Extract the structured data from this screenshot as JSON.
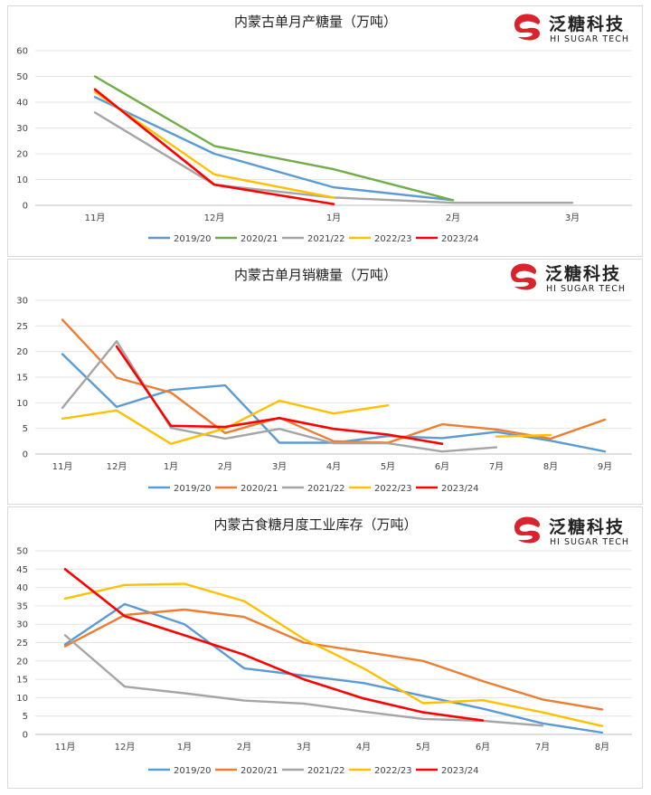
{
  "brand": {
    "name_cn": "泛糖科技",
    "name_en": "HI SUGAR TECH",
    "logo_color": "#d9232d"
  },
  "chart_data": [
    {
      "type": "line",
      "title": "内蒙古单月产糖量（万吨）",
      "categories": [
        "11月",
        "12月",
        "1月",
        "2月",
        "3月"
      ],
      "ylim": [
        0,
        60
      ],
      "yticks": [
        "0",
        "10",
        "20",
        "30",
        "40",
        "50",
        "60"
      ],
      "grid": true,
      "legend": "bottom",
      "series": [
        {
          "name": "2019/20",
          "color": "#5b9bd5",
          "values": [
            42,
            20,
            7,
            2,
            null
          ]
        },
        {
          "name": "2020/21",
          "color": "#70ad47",
          "values": [
            50,
            23,
            14,
            2,
            null
          ]
        },
        {
          "name": "2021/22",
          "color": "#a5a5a5",
          "values": [
            36,
            8,
            3,
            1,
            1
          ]
        },
        {
          "name": "2022/23",
          "color": "#ffc000",
          "values": [
            44,
            12,
            3,
            null,
            null
          ]
        },
        {
          "name": "2023/24",
          "color": "#ff0000",
          "values": [
            45,
            8,
            0.5,
            null,
            null
          ]
        }
      ]
    },
    {
      "type": "line",
      "title": "内蒙古单月销糖量（万吨）",
      "categories": [
        "11月",
        "12月",
        "1月",
        "2月",
        "3月",
        "4月",
        "5月",
        "6月",
        "7月",
        "8月",
        "9月"
      ],
      "ylim": [
        0,
        30
      ],
      "yticks": [
        "0",
        "5",
        "10",
        "15",
        "20",
        "25",
        "30"
      ],
      "grid": true,
      "legend": "bottom",
      "series": [
        {
          "name": "2019/20",
          "color": "#5b9bd5",
          "values": [
            19.5,
            9.2,
            12.5,
            13.4,
            2.2,
            2.2,
            3.5,
            3.1,
            4.3,
            2.6,
            0.5
          ]
        },
        {
          "name": "2020/21",
          "color": "#ed7d31",
          "values": [
            26.2,
            14.9,
            12,
            4.1,
            7.1,
            2.5,
            2.2,
            5.8,
            4.8,
            3,
            6.7
          ]
        },
        {
          "name": "2021/22",
          "color": "#a5a5a5",
          "values": [
            9,
            22,
            5.1,
            3,
            4.9,
            2.1,
            2.1,
            0.5,
            1.3,
            null,
            null
          ]
        },
        {
          "name": "2022/23",
          "color": "#ffc000",
          "values": [
            6.9,
            8.5,
            2,
            5,
            10.4,
            7.9,
            9.5,
            null,
            3.4,
            3.7,
            null
          ]
        },
        {
          "name": "2023/24",
          "color": "#ff0000",
          "values": [
            null,
            21,
            5.5,
            5.3,
            7,
            4.9,
            3.8,
            2,
            null,
            null,
            null
          ]
        }
      ]
    },
    {
      "type": "line",
      "title": "内蒙古食糖月度工业库存（万吨）",
      "categories": [
        "11月",
        "12月",
        "1月",
        "2月",
        "3月",
        "4月",
        "5月",
        "6月",
        "7月",
        "8月"
      ],
      "ylim": [
        0,
        50
      ],
      "yticks": [
        "0",
        "5",
        "10",
        "15",
        "20",
        "25",
        "30",
        "35",
        "40",
        "45",
        "50"
      ],
      "grid": true,
      "legend": "bottom",
      "series": [
        {
          "name": "2019/20",
          "color": "#5b9bd5",
          "values": [
            24.5,
            35.5,
            30,
            18,
            16,
            14,
            10.5,
            7,
            3,
            0.5
          ]
        },
        {
          "name": "2020/21",
          "color": "#ed7d31",
          "values": [
            24,
            32.5,
            34,
            32,
            25,
            22.5,
            20,
            14.5,
            9.5,
            6.8
          ]
        },
        {
          "name": "2021/22",
          "color": "#a5a5a5",
          "values": [
            27,
            13,
            11.2,
            9.2,
            8.4,
            6.2,
            4.2,
            3.7,
            2.4,
            null
          ]
        },
        {
          "name": "2022/23",
          "color": "#ffc000",
          "values": [
            37,
            40.7,
            41,
            36.3,
            26,
            18,
            8.5,
            9.3,
            6,
            2.3
          ]
        },
        {
          "name": "2023/24",
          "color": "#ff0000",
          "values": [
            45,
            32.2,
            27,
            21.7,
            15,
            9.8,
            6,
            3.8,
            null,
            null
          ]
        }
      ]
    }
  ]
}
